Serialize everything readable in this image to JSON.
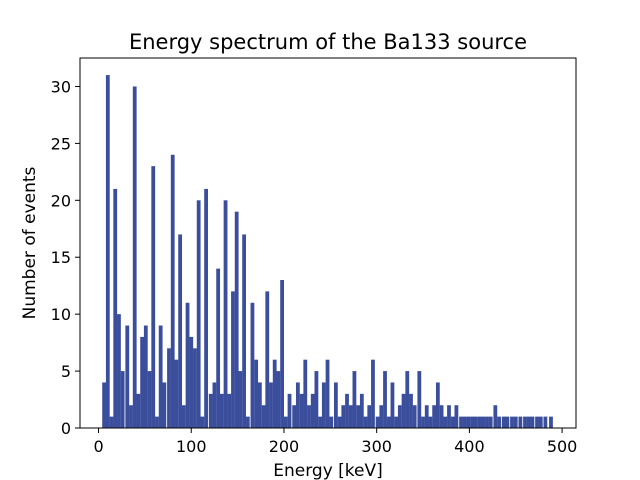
{
  "chart_data": {
    "type": "bar",
    "title": "Energy spectrum of the Ba133 source",
    "xlabel": "Energy [keV]",
    "ylabel": "Number of events",
    "xlim": [
      -20,
      515
    ],
    "ylim": [
      0,
      32.5
    ],
    "xticks": [
      0,
      100,
      200,
      300,
      400,
      500
    ],
    "yticks": [
      0,
      5,
      10,
      15,
      20,
      25,
      30
    ],
    "bin_width": 4.1,
    "grid": false,
    "color": "#3b4e9c",
    "bins": [
      {
        "x": 6,
        "y": 4
      },
      {
        "x": 10,
        "y": 31
      },
      {
        "x": 14,
        "y": 1
      },
      {
        "x": 18,
        "y": 21
      },
      {
        "x": 22,
        "y": 10
      },
      {
        "x": 26,
        "y": 5
      },
      {
        "x": 31,
        "y": 9
      },
      {
        "x": 35,
        "y": 2
      },
      {
        "x": 39,
        "y": 30
      },
      {
        "x": 43,
        "y": 3
      },
      {
        "x": 47,
        "y": 8
      },
      {
        "x": 51,
        "y": 9
      },
      {
        "x": 55,
        "y": 5
      },
      {
        "x": 59,
        "y": 23
      },
      {
        "x": 63,
        "y": 1
      },
      {
        "x": 67,
        "y": 9
      },
      {
        "x": 71,
        "y": 4
      },
      {
        "x": 76,
        "y": 7
      },
      {
        "x": 80,
        "y": 24
      },
      {
        "x": 84,
        "y": 6
      },
      {
        "x": 88,
        "y": 17
      },
      {
        "x": 92,
        "y": 2
      },
      {
        "x": 96,
        "y": 11
      },
      {
        "x": 100,
        "y": 8
      },
      {
        "x": 104,
        "y": 7
      },
      {
        "x": 108,
        "y": 20
      },
      {
        "x": 112,
        "y": 1
      },
      {
        "x": 116,
        "y": 21
      },
      {
        "x": 121,
        "y": 3
      },
      {
        "x": 125,
        "y": 4
      },
      {
        "x": 129,
        "y": 14
      },
      {
        "x": 133,
        "y": 3
      },
      {
        "x": 137,
        "y": 20
      },
      {
        "x": 141,
        "y": 3
      },
      {
        "x": 145,
        "y": 12
      },
      {
        "x": 149,
        "y": 19
      },
      {
        "x": 153,
        "y": 5
      },
      {
        "x": 157,
        "y": 17
      },
      {
        "x": 161,
        "y": 1
      },
      {
        "x": 166,
        "y": 11
      },
      {
        "x": 170,
        "y": 6
      },
      {
        "x": 174,
        "y": 4
      },
      {
        "x": 178,
        "y": 2
      },
      {
        "x": 182,
        "y": 12
      },
      {
        "x": 186,
        "y": 4
      },
      {
        "x": 190,
        "y": 6
      },
      {
        "x": 194,
        "y": 5
      },
      {
        "x": 198,
        "y": 13
      },
      {
        "x": 202,
        "y": 1
      },
      {
        "x": 206,
        "y": 3
      },
      {
        "x": 211,
        "y": 2
      },
      {
        "x": 215,
        "y": 4
      },
      {
        "x": 219,
        "y": 3
      },
      {
        "x": 223,
        "y": 6
      },
      {
        "x": 227,
        "y": 2
      },
      {
        "x": 231,
        "y": 3
      },
      {
        "x": 235,
        "y": 5
      },
      {
        "x": 239,
        "y": 1
      },
      {
        "x": 243,
        "y": 4
      },
      {
        "x": 247,
        "y": 6
      },
      {
        "x": 251,
        "y": 1
      },
      {
        "x": 256,
        "y": 4
      },
      {
        "x": 260,
        "y": 1
      },
      {
        "x": 264,
        "y": 2
      },
      {
        "x": 268,
        "y": 3
      },
      {
        "x": 272,
        "y": 2
      },
      {
        "x": 276,
        "y": 5
      },
      {
        "x": 280,
        "y": 2
      },
      {
        "x": 284,
        "y": 3
      },
      {
        "x": 288,
        "y": 1
      },
      {
        "x": 292,
        "y": 2
      },
      {
        "x": 296,
        "y": 6
      },
      {
        "x": 301,
        "y": 1
      },
      {
        "x": 305,
        "y": 2
      },
      {
        "x": 309,
        "y": 5
      },
      {
        "x": 313,
        "y": 1
      },
      {
        "x": 317,
        "y": 4
      },
      {
        "x": 321,
        "y": 1
      },
      {
        "x": 325,
        "y": 2
      },
      {
        "x": 329,
        "y": 3
      },
      {
        "x": 333,
        "y": 5
      },
      {
        "x": 337,
        "y": 3
      },
      {
        "x": 341,
        "y": 2
      },
      {
        "x": 346,
        "y": 5
      },
      {
        "x": 350,
        "y": 1
      },
      {
        "x": 354,
        "y": 2
      },
      {
        "x": 358,
        "y": 1
      },
      {
        "x": 362,
        "y": 2
      },
      {
        "x": 366,
        "y": 4
      },
      {
        "x": 370,
        "y": 2
      },
      {
        "x": 374,
        "y": 1
      },
      {
        "x": 378,
        "y": 2
      },
      {
        "x": 382,
        "y": 1
      },
      {
        "x": 386,
        "y": 2
      },
      {
        "x": 391,
        "y": 1
      },
      {
        "x": 395,
        "y": 1
      },
      {
        "x": 399,
        "y": 1
      },
      {
        "x": 403,
        "y": 1
      },
      {
        "x": 407,
        "y": 1
      },
      {
        "x": 411,
        "y": 1
      },
      {
        "x": 415,
        "y": 1
      },
      {
        "x": 419,
        "y": 1
      },
      {
        "x": 423,
        "y": 1
      },
      {
        "x": 428,
        "y": 2
      },
      {
        "x": 432,
        "y": 1
      },
      {
        "x": 437,
        "y": 1
      },
      {
        "x": 441,
        "y": 1
      },
      {
        "x": 446,
        "y": 1
      },
      {
        "x": 450,
        "y": 1
      },
      {
        "x": 455,
        "y": 1
      },
      {
        "x": 460,
        "y": 1
      },
      {
        "x": 464,
        "y": 1
      },
      {
        "x": 468,
        "y": 1
      },
      {
        "x": 473,
        "y": 1
      },
      {
        "x": 477,
        "y": 1
      },
      {
        "x": 482,
        "y": 1
      },
      {
        "x": 488,
        "y": 1
      }
    ]
  }
}
